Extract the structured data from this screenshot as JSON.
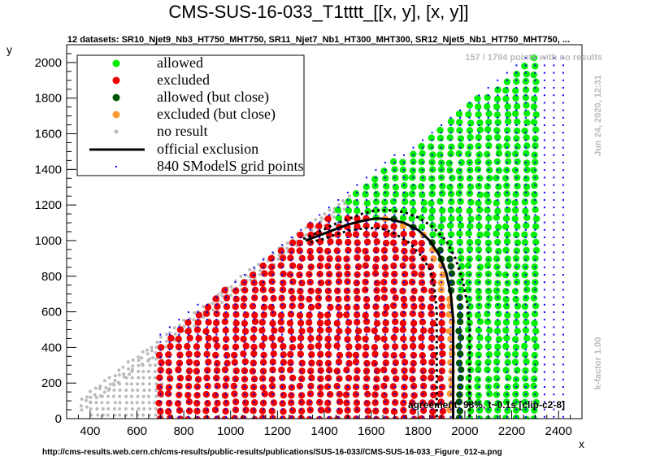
{
  "chart_data": {
    "type": "scatter",
    "title": "CMS-SUS-16-033_T1tttt_[[x, y], [x, y]]",
    "subtitle": "12 datasets: SR10_Njet9_Nb3_HT750_MHT750, SR11_Njet7_Nb1_HT300_MHT300, SR12_Njet5_Nb1_HT750_MHT750,  ...",
    "xlabel": "x",
    "ylabel": "y",
    "xlim": [
      300,
      2500
    ],
    "ylim": [
      0,
      2100
    ],
    "x_ticks": [
      "400",
      "600",
      "800",
      "1000",
      "1200",
      "1400",
      "1600",
      "1800",
      "2000",
      "2200",
      "2400"
    ],
    "y_ticks": [
      "0",
      "200",
      "400",
      "600",
      "800",
      "1000",
      "1200",
      "1400",
      "1600",
      "1800",
      "2000"
    ],
    "legend": {
      "placement": "top-left",
      "entries": [
        {
          "label": "allowed",
          "color": "#00ee00",
          "marker": "circle"
        },
        {
          "label": "excluded",
          "color": "#ee0000",
          "marker": "circle"
        },
        {
          "label": "allowed (but close)",
          "color": "#005500",
          "marker": "circle"
        },
        {
          "label": "excluded (but close)",
          "color": "#ff9933",
          "marker": "circle"
        },
        {
          "label": "no result",
          "color": "#bbbbbb",
          "marker": "small-circle"
        },
        {
          "label": "official exclusion",
          "color": "#000000",
          "marker": "line"
        },
        {
          "label": "840 SModelS grid points",
          "color": "#0000ff",
          "marker": "dot"
        }
      ]
    },
    "annotations": {
      "no_results": "157 / 1794 points with no results",
      "timestamp": "Jun 24, 2020, 12:31",
      "kfactor": "k-factor 1.00",
      "agreement": "agreement: 98%, t~0.1s [clip-c2-8]",
      "source_url": "http://cms-results.web.cern.ch/cms-results/public-results/publications/SUS-16-033//CMS-SUS-16-033_Figure_012-a.png"
    },
    "official_exclusion": [
      [
        1320,
        1000
      ],
      [
        1380,
        1030
      ],
      [
        1440,
        1060
      ],
      [
        1500,
        1090
      ],
      [
        1560,
        1110
      ],
      [
        1620,
        1125
      ],
      [
        1680,
        1120
      ],
      [
        1740,
        1100
      ],
      [
        1800,
        1060
      ],
      [
        1850,
        1000
      ],
      [
        1890,
        920
      ],
      [
        1920,
        820
      ],
      [
        1940,
        700
      ],
      [
        1950,
        560
      ],
      [
        1950,
        400
      ],
      [
        1950,
        200
      ],
      [
        1950,
        0
      ]
    ],
    "expected_exclusion_upper": [
      [
        1310,
        1010
      ],
      [
        1380,
        1050
      ],
      [
        1440,
        1090
      ],
      [
        1500,
        1120
      ],
      [
        1560,
        1150
      ],
      [
        1620,
        1170
      ],
      [
        1680,
        1170
      ],
      [
        1740,
        1160
      ],
      [
        1800,
        1130
      ],
      [
        1860,
        1080
      ],
      [
        1920,
        1000
      ],
      [
        1960,
        900
      ],
      [
        1990,
        780
      ],
      [
        2010,
        650
      ],
      [
        2020,
        500
      ],
      [
        2020,
        300
      ],
      [
        2020,
        100
      ],
      [
        2020,
        0
      ]
    ],
    "expected_exclusion_lower": [
      [
        1340,
        990
      ],
      [
        1400,
        1010
      ],
      [
        1460,
        1040
      ],
      [
        1520,
        1060
      ],
      [
        1580,
        1070
      ],
      [
        1640,
        1070
      ],
      [
        1700,
        1040
      ],
      [
        1760,
        990
      ],
      [
        1810,
        920
      ],
      [
        1850,
        840
      ],
      [
        1870,
        740
      ],
      [
        1880,
        600
      ],
      [
        1880,
        400
      ],
      [
        1880,
        200
      ],
      [
        1880,
        0
      ]
    ],
    "regions": {
      "grid_min_x": 700,
      "grid_max_x": 2450,
      "allowed_min_x": 1950,
      "diagonal": "y = x - 225"
    },
    "colors": {
      "allowed": "#00ee00",
      "excluded": "#ee0000",
      "allowed_close": "#005500",
      "excluded_close": "#ff9933",
      "no_result": "#bbbbbb",
      "grid_point": "#0000ff",
      "line": "#000000",
      "annotation_gray": "#bbbbbb"
    }
  }
}
